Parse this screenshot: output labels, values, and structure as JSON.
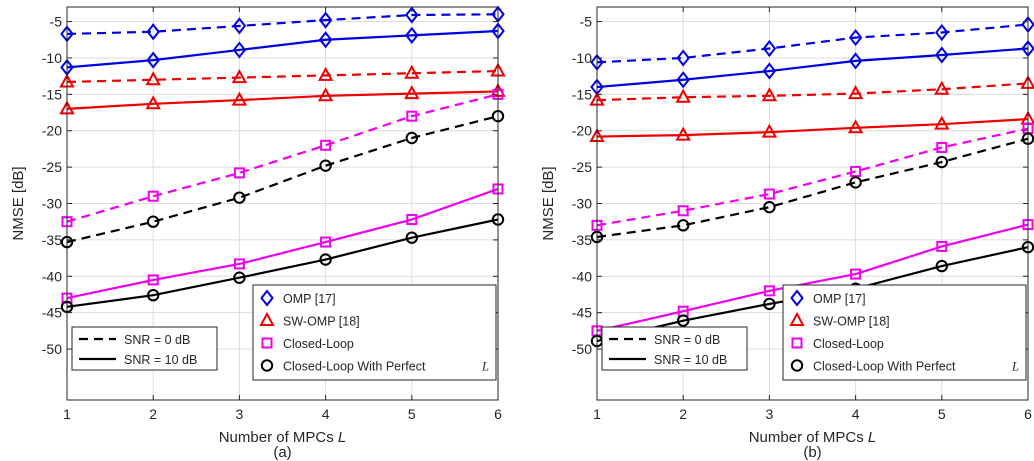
{
  "chart_data": [
    {
      "type": "line",
      "panel_label": "(a)",
      "xlabel": "Number of MPCs",
      "xlabel_symbol": "L",
      "ylabel": "NMSE [dB]",
      "x": [
        1,
        2,
        3,
        4,
        5,
        6
      ],
      "xlim": [
        1,
        6
      ],
      "ylim": [
        -57,
        -3
      ],
      "xticks": [
        "1",
        "2",
        "3",
        "4",
        "5",
        "6"
      ],
      "yticks": [
        "-5",
        "-10",
        "-15",
        "-20",
        "-25",
        "-30",
        "-35",
        "-40",
        "-45",
        "-50"
      ],
      "grid": true,
      "series": [
        {
          "name": "OMP [17]",
          "color": "#0000e0",
          "marker": "diamond",
          "style": "dashed",
          "snr": "SNR = 0 dB",
          "values": [
            -6.7,
            -6.4,
            -5.6,
            -4.8,
            -4.1,
            -4.0
          ]
        },
        {
          "name": "OMP [17]",
          "color": "#0000e0",
          "marker": "diamond",
          "style": "solid",
          "snr": "SNR = 10 dB",
          "values": [
            -11.3,
            -10.3,
            -8.9,
            -7.5,
            -6.9,
            -6.3
          ]
        },
        {
          "name": "SW-OMP [18]",
          "color": "#ee0000",
          "marker": "triangle",
          "style": "dashed",
          "snr": "SNR = 0 dB",
          "values": [
            -13.3,
            -13.0,
            -12.7,
            -12.4,
            -12.1,
            -11.8
          ]
        },
        {
          "name": "SW-OMP [18]",
          "color": "#ee0000",
          "marker": "triangle",
          "style": "solid",
          "snr": "SNR = 10 dB",
          "values": [
            -17.0,
            -16.3,
            -15.8,
            -15.2,
            -14.9,
            -14.6
          ]
        },
        {
          "name": "Closed-Loop",
          "color": "#ee00ee",
          "marker": "square",
          "style": "dashed",
          "snr": "SNR = 0 dB",
          "values": [
            -32.5,
            -29.0,
            -25.8,
            -22.0,
            -18.0,
            -15.0
          ]
        },
        {
          "name": "Closed-Loop",
          "color": "#ee00ee",
          "marker": "square",
          "style": "solid",
          "snr": "SNR = 10 dB",
          "values": [
            -43.0,
            -40.5,
            -38.3,
            -35.3,
            -32.2,
            -28.0
          ]
        },
        {
          "name": "Closed-Loop With Perfect L",
          "color": "#000000",
          "marker": "circle",
          "style": "dashed",
          "snr": "SNR = 0 dB",
          "values": [
            -35.3,
            -32.5,
            -29.2,
            -24.8,
            -21.0,
            -18.0
          ]
        },
        {
          "name": "Closed-Loop With Perfect L",
          "color": "#000000",
          "marker": "circle",
          "style": "solid",
          "snr": "SNR = 10 dB",
          "values": [
            -44.2,
            -42.6,
            -40.2,
            -37.7,
            -34.7,
            -32.2
          ]
        }
      ]
    },
    {
      "type": "line",
      "panel_label": "(b)",
      "xlabel": "Number of MPCs",
      "xlabel_symbol": "L",
      "ylabel": "NMSE [dB]",
      "x": [
        1,
        2,
        3,
        4,
        5,
        6
      ],
      "xlim": [
        1,
        6
      ],
      "ylim": [
        -57,
        -3
      ],
      "xticks": [
        "1",
        "2",
        "3",
        "4",
        "5",
        "6"
      ],
      "yticks": [
        "-5",
        "-10",
        "-15",
        "-20",
        "-25",
        "-30",
        "-35",
        "-40",
        "-45",
        "-50"
      ],
      "grid": true,
      "series": [
        {
          "name": "OMP [17]",
          "color": "#0000e0",
          "marker": "diamond",
          "style": "dashed",
          "snr": "SNR = 0 dB",
          "values": [
            -10.6,
            -10.0,
            -8.7,
            -7.2,
            -6.5,
            -5.4
          ]
        },
        {
          "name": "OMP [17]",
          "color": "#0000e0",
          "marker": "diamond",
          "style": "solid",
          "snr": "SNR = 10 dB",
          "values": [
            -14.0,
            -13.0,
            -11.8,
            -10.4,
            -9.6,
            -8.7
          ]
        },
        {
          "name": "SW-OMP [18]",
          "color": "#ee0000",
          "marker": "triangle",
          "style": "dashed",
          "snr": "SNR = 0 dB",
          "values": [
            -15.8,
            -15.4,
            -15.2,
            -14.9,
            -14.3,
            -13.5
          ]
        },
        {
          "name": "SW-OMP [18]",
          "color": "#ee0000",
          "marker": "triangle",
          "style": "solid",
          "snr": "SNR = 10 dB",
          "values": [
            -20.8,
            -20.6,
            -20.2,
            -19.6,
            -19.1,
            -18.4
          ]
        },
        {
          "name": "Closed-Loop",
          "color": "#ee00ee",
          "marker": "square",
          "style": "dashed",
          "snr": "SNR = 0 dB",
          "values": [
            -33.0,
            -31.0,
            -28.7,
            -25.6,
            -22.3,
            -19.7
          ]
        },
        {
          "name": "Closed-Loop",
          "color": "#ee00ee",
          "marker": "square",
          "style": "solid",
          "snr": "SNR = 10 dB",
          "values": [
            -47.5,
            -44.8,
            -42.0,
            -39.7,
            -35.9,
            -32.9
          ]
        },
        {
          "name": "Closed-Loop With Perfect L",
          "color": "#000000",
          "marker": "circle",
          "style": "dashed",
          "snr": "SNR = 0 dB",
          "values": [
            -34.6,
            -33.0,
            -30.5,
            -27.1,
            -24.3,
            -21.1
          ]
        },
        {
          "name": "Closed-Loop With Perfect L",
          "color": "#000000",
          "marker": "circle",
          "style": "solid",
          "snr": "SNR = 10 dB",
          "values": [
            -48.9,
            -46.1,
            -43.8,
            -41.7,
            -38.6,
            -36.0
          ]
        }
      ]
    }
  ],
  "legend": {
    "methods": [
      {
        "label": "OMP [17]",
        "marker": "diamond",
        "color": "#0000e0"
      },
      {
        "label": "SW-OMP [18]",
        "marker": "triangle",
        "color": "#ee0000"
      },
      {
        "label": "Closed-Loop",
        "marker": "square",
        "color": "#ee00ee"
      },
      {
        "label": "Closed-Loop With Perfect",
        "symbol": "L",
        "marker": "circle",
        "color": "#000000"
      }
    ],
    "snr": [
      {
        "label": "SNR = 0 dB",
        "style": "dashed"
      },
      {
        "label": "SNR = 10 dB",
        "style": "solid"
      }
    ]
  }
}
